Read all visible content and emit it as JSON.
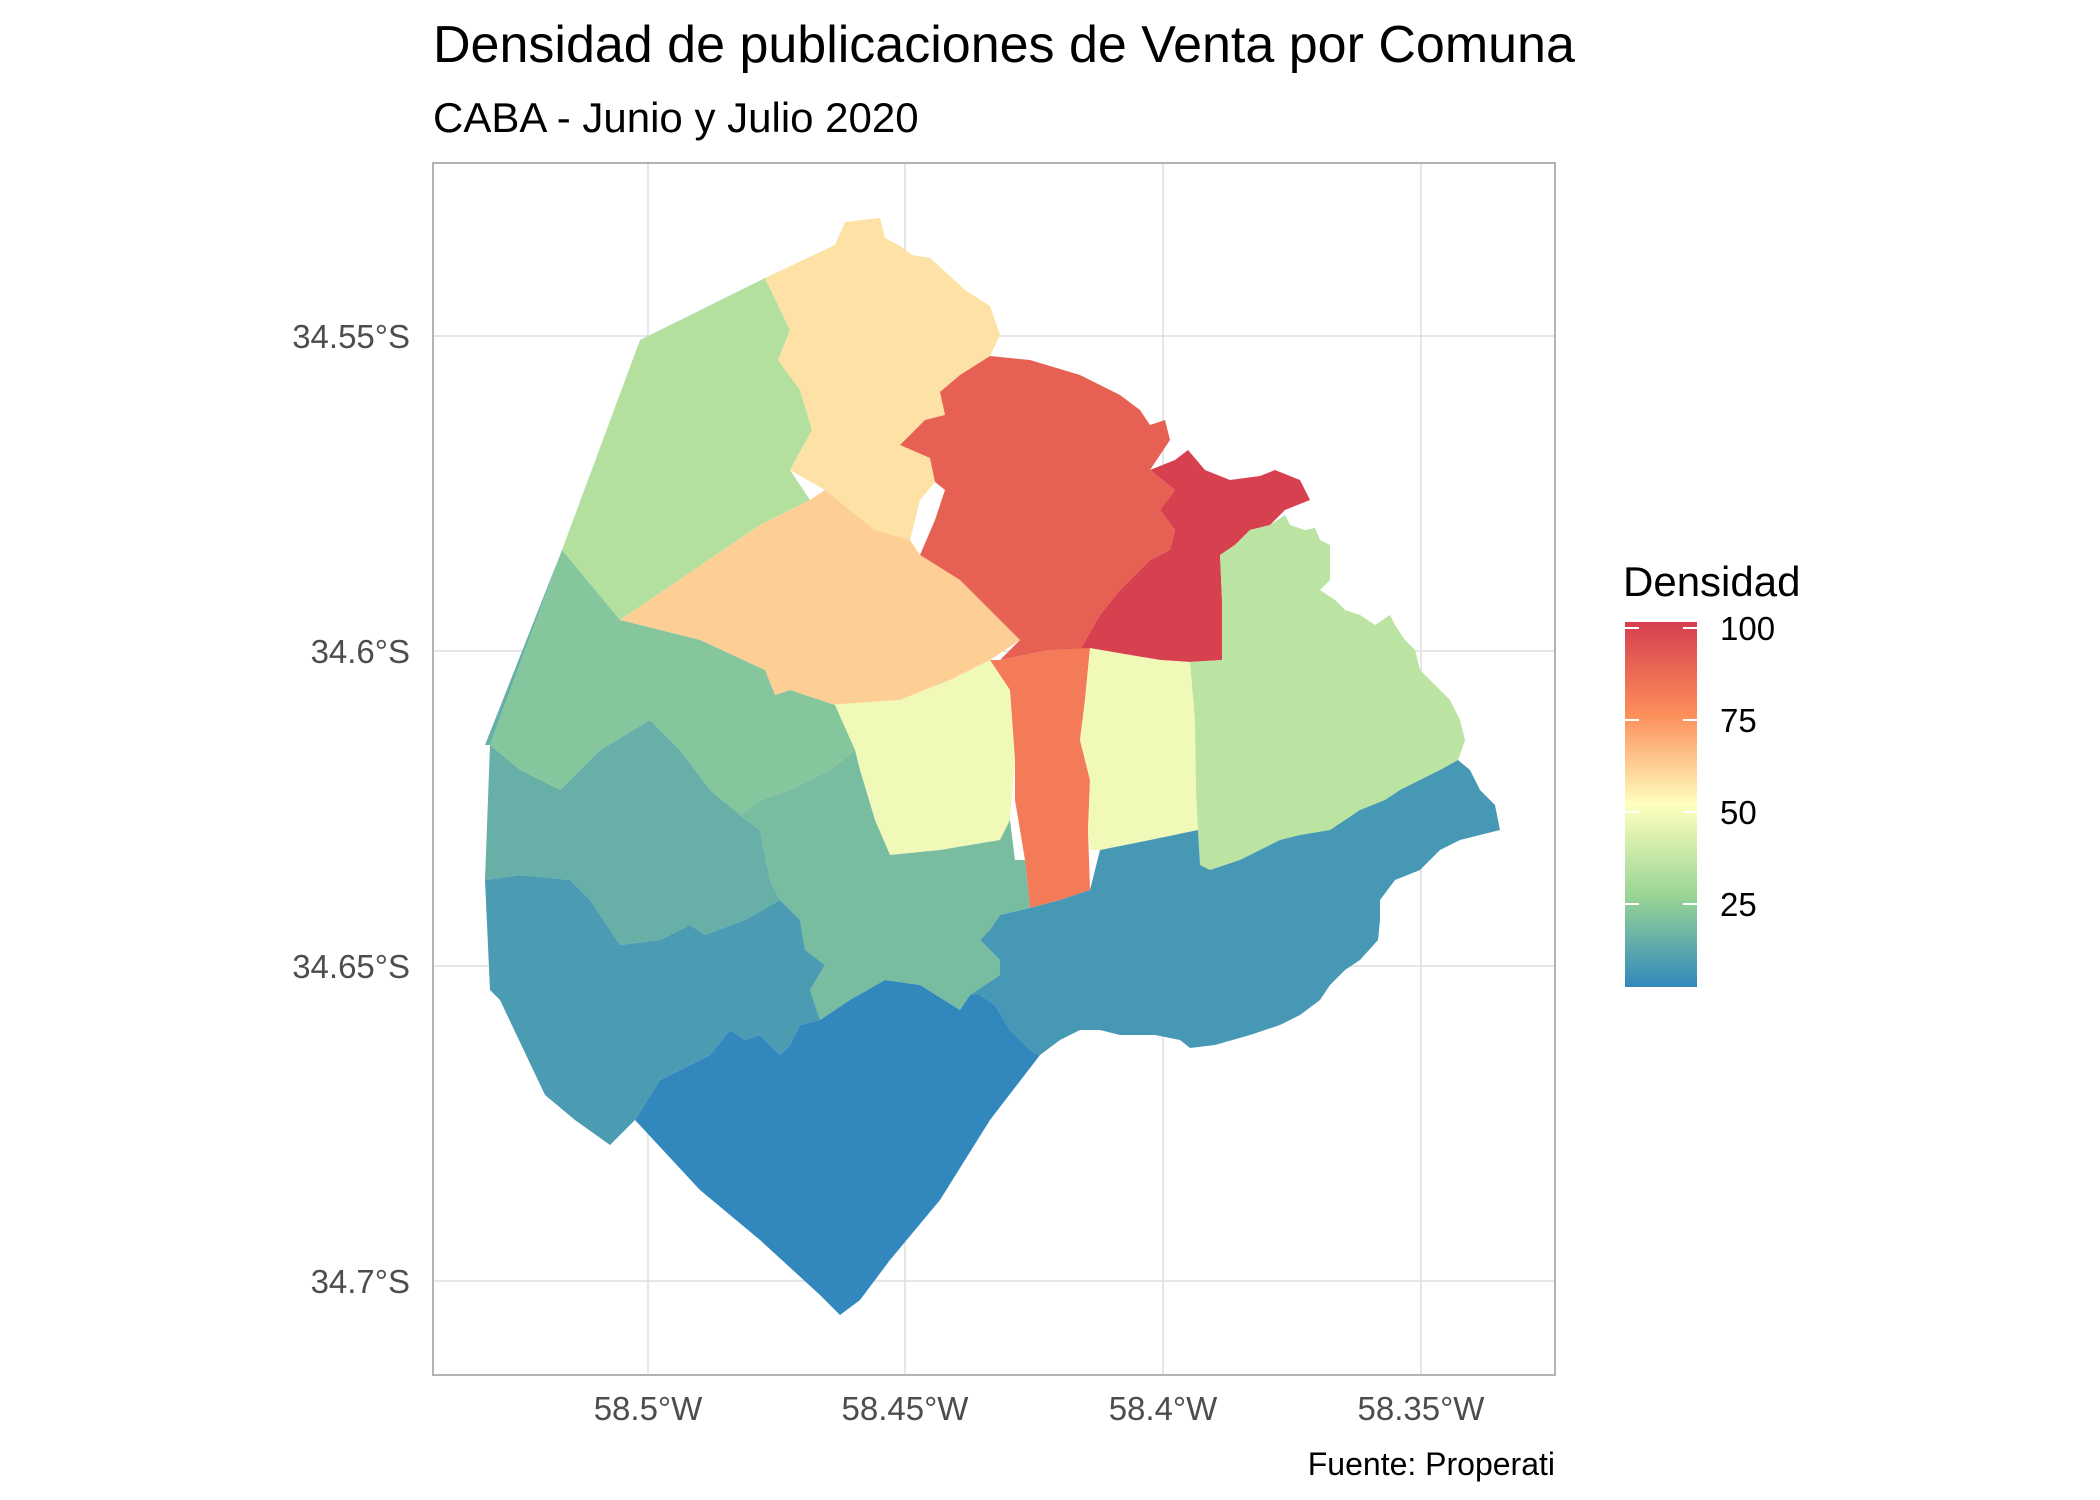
{
  "title": "Densidad de publicaciones de Venta por Comuna",
  "subtitle": "CABA - Junio y Julio 2020",
  "caption": "Fuente: Properati",
  "map": {
    "x_ticks": [
      "58.5°W",
      "58.45°W",
      "58.4°W",
      "58.35°W"
    ],
    "y_ticks": [
      "34.55°S",
      "34.6°S",
      "34.65°S",
      "34.7°S"
    ],
    "palette": "Spectral",
    "color_low": "#3288bd",
    "color_high": "#d53e4f"
  },
  "legend": {
    "title": "Densidad",
    "labels": [
      "100",
      "75",
      "50",
      "25"
    ],
    "min": 2,
    "max": 101
  },
  "regions": [
    {
      "name": "north-west",
      "densidad": 33
    },
    {
      "name": "north",
      "densidad": 58
    },
    {
      "name": "central-north",
      "densidad": 62
    },
    {
      "name": "north-east",
      "densidad": 90
    },
    {
      "name": "center-east",
      "densidad": 100
    },
    {
      "name": "center",
      "densidad": 48
    },
    {
      "name": "center-south-strip",
      "densidad": 82
    },
    {
      "name": "east",
      "densidad": 48
    },
    {
      "name": "far-east",
      "densidad": 35
    },
    {
      "name": "west",
      "densidad": 22
    },
    {
      "name": "south-west",
      "densidad": 15
    },
    {
      "name": "center-west",
      "densidad": 19
    },
    {
      "name": "south-east",
      "densidad": 7
    },
    {
      "name": "south-west-low",
      "densidad": 8
    },
    {
      "name": "south",
      "densidad": 2
    }
  ]
}
